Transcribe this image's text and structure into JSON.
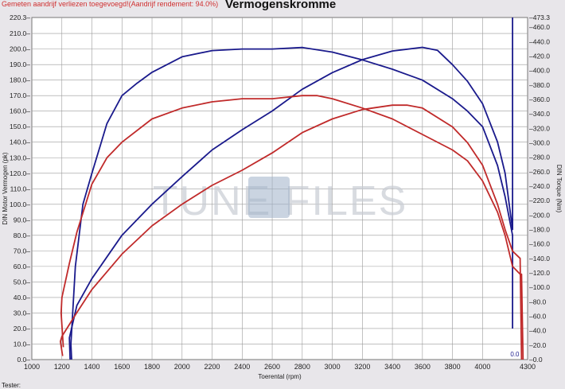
{
  "header": {
    "note": "Gemeten aandrijf verliezen toegevoegd!(Aandrijf rendement: 94.0%)",
    "title": "Vermogenskromme"
  },
  "footer": {
    "tester": "Tester:"
  },
  "watermark": "TUNE FILES.com",
  "colors": {
    "tuned": "#1a1a8c",
    "stock": "#c02a2a",
    "grid": "#9a9a9a",
    "plot_bg": "#ffffff"
  },
  "chart_data": {
    "type": "line",
    "title": "Vermogenskromme",
    "xlabel": "Toerental (rpm)",
    "ylabel": "DIN Motor Vermogen (pk)",
    "y2label": "DIN Torque (Nm)",
    "xlim": [
      1000,
      4300
    ],
    "ylim": [
      0,
      220.3
    ],
    "y2lim": [
      0,
      473.3
    ],
    "xticks": [
      1000,
      1200,
      1400,
      1600,
      1800,
      2000,
      2200,
      2400,
      2600,
      2800,
      3000,
      3200,
      3400,
      3600,
      3800,
      4000,
      4300
    ],
    "yticks": [
      "0.0",
      "10.0",
      "20.0",
      "30.0",
      "40.0",
      "50.0",
      "60.0",
      "70.0",
      "80.0",
      "90.0",
      "100.0",
      "110.0",
      "120.0",
      "130.0",
      "140.0",
      "150.0",
      "160.0",
      "170.0",
      "180.0",
      "190.0",
      "200.0",
      "210.0",
      "220.3"
    ],
    "y2ticks": [
      "0.0",
      "20.0",
      "40.0",
      "60.0",
      "80.0",
      "100.0",
      "120.0",
      "140.0",
      "160.0",
      "180.0",
      "200.0",
      "220.0",
      "240.0",
      "260.0",
      "280.0",
      "300.0",
      "320.0",
      "340.0",
      "360.0",
      "380.0",
      "400.0",
      "420.0",
      "440.0",
      "460.0",
      "473.3"
    ],
    "grid": true,
    "end_labels": "0.0",
    "series": [
      {
        "key": "tuned_power",
        "axis": "left",
        "color": "#1a1a8c",
        "x": [
          1265,
          1260,
          1290,
          1340,
          1400,
          1500,
          1600,
          1700,
          1800,
          2000,
          2200,
          2400,
          2600,
          2800,
          3000,
          3200,
          3400,
          3600,
          3800,
          3900,
          4000,
          4100,
          4150,
          4200,
          4200
        ],
        "y": [
          0,
          10,
          60,
          100,
          120,
          152,
          170,
          178,
          185,
          195,
          199,
          200,
          200,
          201,
          198,
          193,
          187,
          180,
          168,
          160,
          150,
          125,
          105,
          80,
          20
        ]
      },
      {
        "key": "tuned_torque",
        "axis": "right",
        "color": "#1a1a8c",
        "x": [
          1255,
          1250,
          1300,
          1400,
          1600,
          1800,
          2000,
          2200,
          2400,
          2600,
          2800,
          3000,
          3200,
          3400,
          3600,
          3700,
          3800,
          3900,
          4000,
          4100,
          4150,
          4200,
          4200
        ],
        "y": [
          0,
          30,
          75,
          112,
          172,
          215,
          253,
          290,
          318,
          344,
          374,
          397,
          415,
          427,
          432,
          428,
          408,
          385,
          354,
          301,
          258,
          180,
          473.3
        ]
      },
      {
        "key": "stock_power",
        "axis": "left",
        "color": "#c02a2a",
        "x": [
          1210,
          1195,
          1200,
          1250,
          1300,
          1400,
          1500,
          1600,
          1800,
          2000,
          2200,
          2400,
          2600,
          2800,
          2900,
          3000,
          3200,
          3400,
          3600,
          3800,
          3900,
          4000,
          4100,
          4150,
          4200,
          4250,
          4260,
          4270
        ],
        "y": [
          8,
          30,
          40,
          62,
          82,
          113,
          130,
          140,
          155,
          162,
          166,
          168,
          168,
          170,
          170,
          168,
          162,
          155,
          145,
          135,
          128,
          115,
          95,
          80,
          60,
          55,
          55,
          0
        ]
      },
      {
        "key": "stock_torque",
        "axis": "right",
        "color": "#c02a2a",
        "x": [
          1205,
          1190,
          1200,
          1300,
          1400,
          1600,
          1800,
          2000,
          2200,
          2400,
          2600,
          2800,
          3000,
          3200,
          3400,
          3500,
          3600,
          3800,
          3900,
          4000,
          4100,
          4150,
          4200,
          4250,
          4260
        ],
        "y": [
          5,
          25,
          32,
          65,
          97,
          146,
          185,
          215,
          241,
          262,
          286,
          314,
          333,
          346,
          352,
          352,
          348,
          322,
          300,
          269,
          215,
          180,
          150,
          140,
          0
        ]
      }
    ]
  }
}
